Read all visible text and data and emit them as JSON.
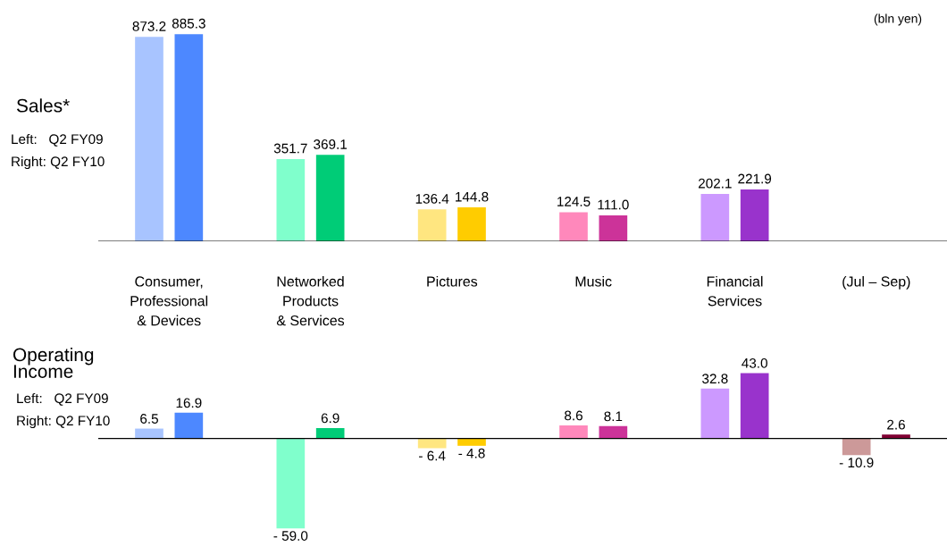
{
  "chart_data": [
    {
      "type": "bar",
      "title": "Sales*",
      "annotations": [
        "Left:   Q2 FY09",
        "Right: Q2 FY10",
        "(bln yen)"
      ],
      "categories": [
        "Consumer,\nProfessional\n& Devices",
        "Networked\nProducts\n& Services",
        "Pictures",
        "Music",
        "Financial\nServices",
        "(Jul – Sep)"
      ],
      "series": [
        {
          "colors": [
            "#a8c4ff",
            "#80ffcc",
            "#ffe680",
            "#ff88bb",
            "#cc99ff",
            "#cc9999"
          ],
          "values": [
            873.2,
            351.7,
            136.4,
            124.5,
            202.1,
            null
          ],
          "value_labels": [
            "873.2",
            "351.7",
            "136.4",
            "124.5",
            "202.1",
            null
          ]
        },
        {
          "colors": [
            "#4d88ff",
            "#00cc77",
            "#ffcc00",
            "#cc3399",
            "#9933cc",
            "#800033"
          ],
          "values": [
            885.3,
            369.1,
            144.8,
            111.0,
            221.9,
            null
          ],
          "value_labels": [
            "885.3",
            "369.1",
            "144.8",
            "111.0",
            "221.9",
            null
          ]
        }
      ],
      "grid": false,
      "legend": false
    },
    {
      "type": "bar",
      "title": "Operating\nIncome",
      "annotations": [
        "Left:   Q2 FY09",
        "Right: Q2 FY10"
      ],
      "categories": [
        null,
        null,
        null,
        null,
        null,
        null
      ],
      "series": [
        {
          "colors": [
            "#a8c4ff",
            "#80ffcc",
            "#ffe680",
            "#ff88bb",
            "#cc99ff",
            "#cc9999"
          ],
          "values": [
            6.5,
            -59.0,
            -6.4,
            8.6,
            32.8,
            -10.9
          ],
          "value_labels": [
            "6.5",
            "- 59.0",
            "- 6.4",
            "8.6",
            "32.8",
            "- 10.9"
          ]
        },
        {
          "colors": [
            "#4d88ff",
            "#00cc77",
            "#ffcc00",
            "#cc3399",
            "#9933cc",
            "#800033"
          ],
          "values": [
            16.9,
            6.9,
            -4.8,
            8.1,
            43.0,
            2.6
          ],
          "value_labels": [
            "16.9",
            "6.9",
            "- 4.8",
            "8.1",
            "43.0",
            "2.6"
          ]
        }
      ],
      "grid": false,
      "legend": false
    }
  ]
}
